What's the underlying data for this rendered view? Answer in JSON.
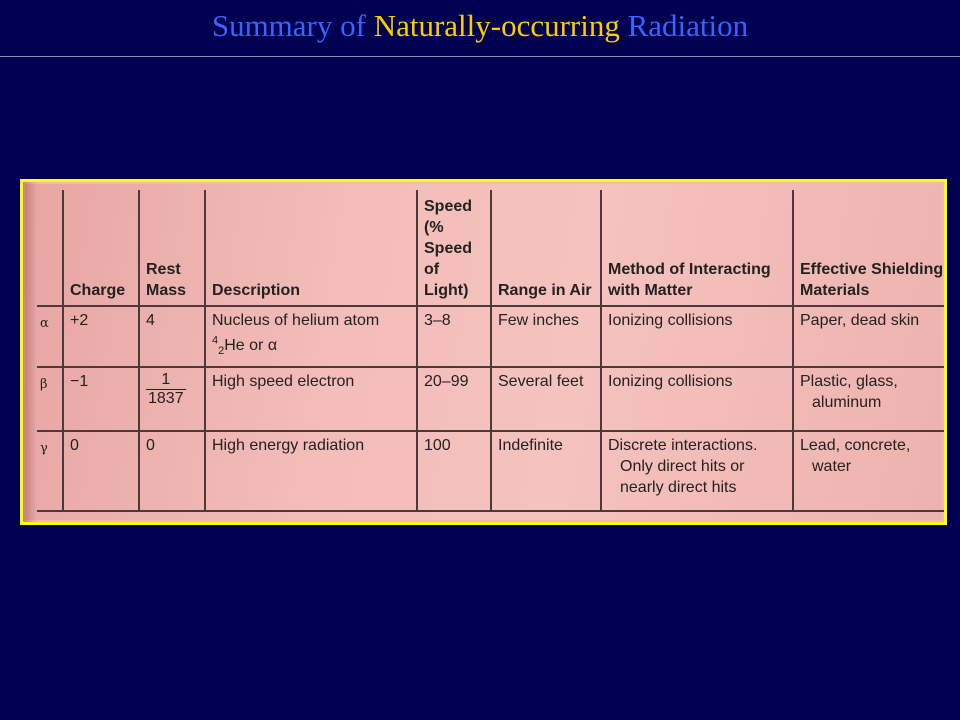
{
  "title": {
    "part1": "Summary of ",
    "highlight": "Naturally-occurring",
    "part2": " Radiation"
  },
  "table": {
    "headers": {
      "symbol": "",
      "charge": "Charge",
      "rest_mass": "Rest Mass",
      "description": "Description",
      "speed": "Speed (% Speed of Light)",
      "range": "Range in Air",
      "method": "Method of Interacting with Matter",
      "shielding": "Effective Shielding Materials"
    },
    "rows": [
      {
        "symbol": "α",
        "charge": "+2",
        "rest_mass": "4",
        "description": "Nucleus of helium atom",
        "description_line2": "He or α",
        "speed": "3–8",
        "range": "Few inches",
        "method": "Ionizing collisions",
        "shielding": "Paper, dead skin"
      },
      {
        "symbol": "β",
        "charge": "−1",
        "rest_mass_num": "1",
        "rest_mass_den": "1837",
        "description": "High speed electron",
        "speed": "20–99",
        "range": "Several feet",
        "method": "Ionizing collisions",
        "shielding": "Plastic, glass,",
        "shielding_line2": "aluminum"
      },
      {
        "symbol": "γ",
        "charge": "0",
        "rest_mass": "0",
        "description": "High energy radiation",
        "speed": "100",
        "range": "Indefinite",
        "method": "Discrete interactions.",
        "method_line2": "Only direct hits or",
        "method_line3": "nearly direct hits",
        "shielding": "Lead, concrete,",
        "shielding_line2": "water"
      }
    ]
  }
}
